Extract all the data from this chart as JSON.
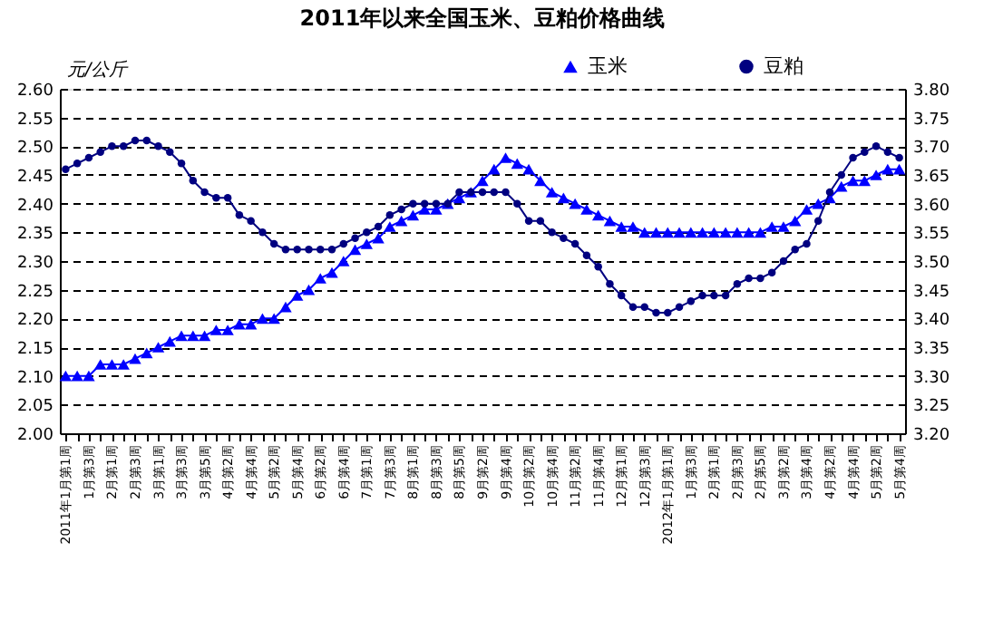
{
  "chart_data": {
    "type": "line",
    "title": "2011年以来全国玉米、豆粕价格曲线",
    "ylabel": "元/公斤",
    "categories": [
      "2011年1月第1周",
      null,
      "1月第3周",
      null,
      "2月第1周",
      null,
      "2月第3周",
      null,
      "3月第1周",
      null,
      "3月第3周",
      null,
      "3月第5周",
      null,
      "4月第2周",
      null,
      "4月第4周",
      null,
      "5月第2周",
      null,
      "5月第4周",
      null,
      "6月第2周",
      null,
      "6月第4周",
      null,
      "7月第1周",
      null,
      "7月第3周",
      null,
      "8月第1周",
      null,
      "8月第3周",
      null,
      "8月第5周",
      null,
      "9月第2周",
      null,
      "9月第4周",
      null,
      "10月第2周",
      null,
      "10月第4周",
      null,
      "11月第2周",
      null,
      "11月第4周",
      null,
      "12月第1周",
      null,
      "12月第3周",
      null,
      "2012年1月第1周",
      null,
      "1月第3周",
      null,
      "2月第1周",
      null,
      "2月第3周",
      null,
      "2月第5周",
      null,
      "3月第2周",
      null,
      "3月第4周",
      null,
      "4月第2周",
      null,
      "4月第4周",
      null,
      "5月第2周",
      null,
      "5月第4周"
    ],
    "series": [
      {
        "name": "玉米",
        "color": "#0000ff",
        "marker": "triangle",
        "values": [
          2.1,
          2.1,
          2.1,
          2.12,
          2.12,
          2.12,
          2.13,
          2.14,
          2.15,
          2.16,
          2.17,
          2.17,
          2.17,
          2.18,
          2.18,
          2.19,
          2.19,
          2.2,
          2.2,
          2.22,
          2.24,
          2.25,
          2.27,
          2.28,
          2.3,
          2.32,
          2.33,
          2.34,
          2.36,
          2.37,
          2.38,
          2.39,
          2.39,
          2.4,
          2.41,
          2.42,
          2.44,
          2.46,
          2.48,
          2.47,
          2.46,
          2.44,
          2.42,
          2.41,
          2.4,
          2.39,
          2.38,
          2.37,
          2.36,
          2.36,
          2.35,
          2.35,
          2.35,
          2.35,
          2.35,
          2.35,
          2.35,
          2.35,
          2.35,
          2.35,
          2.35,
          2.36,
          2.36,
          2.37,
          2.39,
          2.4,
          2.41,
          2.43,
          2.44,
          2.44,
          2.45,
          2.46,
          2.46
        ]
      },
      {
        "name": "豆粕",
        "color": "#000080",
        "marker": "circle",
        "axis": "y2",
        "values": [
          3.66,
          3.67,
          3.68,
          3.69,
          3.7,
          3.7,
          3.71,
          3.71,
          3.7,
          3.69,
          3.67,
          3.64,
          3.62,
          3.61,
          3.61,
          3.58,
          3.57,
          3.55,
          3.53,
          3.52,
          3.52,
          3.52,
          3.52,
          3.52,
          3.53,
          3.54,
          3.55,
          3.56,
          3.58,
          3.59,
          3.6,
          3.6,
          3.6,
          3.6,
          3.62,
          3.62,
          3.62,
          3.62,
          3.62,
          3.6,
          3.57,
          3.57,
          3.55,
          3.54,
          3.53,
          3.51,
          3.49,
          3.46,
          3.44,
          3.42,
          3.42,
          3.41,
          3.41,
          3.42,
          3.43,
          3.44,
          3.44,
          3.44,
          3.46,
          3.47,
          3.47,
          3.48,
          3.5,
          3.52,
          3.53,
          3.57,
          3.62,
          3.65,
          3.68,
          3.69,
          3.7,
          3.69,
          3.68
        ]
      }
    ],
    "ylim": [
      2.0,
      2.6
    ],
    "yticks": [
      {
        "value": 2.0,
        "label": "2.00"
      },
      {
        "value": 2.05,
        "label": "2.05"
      },
      {
        "value": 2.1,
        "label": "2.10"
      },
      {
        "value": 2.15,
        "label": "2.15"
      },
      {
        "value": 2.2,
        "label": "2.20"
      },
      {
        "value": 2.25,
        "label": "2.25"
      },
      {
        "value": 2.3,
        "label": "2.30"
      },
      {
        "value": 2.35,
        "label": "2.35"
      },
      {
        "value": 2.4,
        "label": "2.40"
      },
      {
        "value": 2.45,
        "label": "2.45"
      },
      {
        "value": 2.5,
        "label": "2.50"
      },
      {
        "value": 2.55,
        "label": "2.55"
      },
      {
        "value": 2.6,
        "label": "2.60"
      }
    ],
    "y2lim": [
      3.2,
      3.8
    ],
    "y2ticks": [
      {
        "value": 3.2,
        "label": "3.20"
      },
      {
        "value": 3.25,
        "label": "3.25"
      },
      {
        "value": 3.3,
        "label": "3.30"
      },
      {
        "value": 3.35,
        "label": "3.35"
      },
      {
        "value": 3.4,
        "label": "3.40"
      },
      {
        "value": 3.45,
        "label": "3.45"
      },
      {
        "value": 3.5,
        "label": "3.50"
      },
      {
        "value": 3.55,
        "label": "3.55"
      },
      {
        "value": 3.6,
        "label": "3.60"
      },
      {
        "value": 3.65,
        "label": "3.65"
      },
      {
        "value": 3.7,
        "label": "3.70"
      },
      {
        "value": 3.75,
        "label": "3.75"
      },
      {
        "value": 3.8,
        "label": "3.80"
      }
    ],
    "grid": "y",
    "legend": "top right",
    "line_style": "solid"
  }
}
